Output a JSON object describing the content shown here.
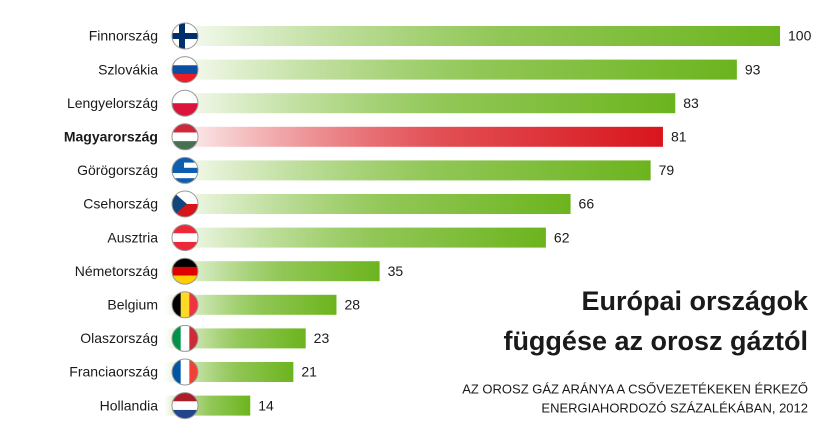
{
  "chart_data": {
    "type": "bar",
    "orientation": "horizontal",
    "title": [
      "Európai országok",
      "függése az orosz gáztól"
    ],
    "subtitle": [
      "AZ OROSZ GÁZ ARÁNYA A CSŐVEZETÉKEKEN ÉRKEZŐ",
      "ENERGIAHORDOZÓ SZÁZALÉKÁBAN, 2012"
    ],
    "categories": [
      "Finnország",
      "Szlovákia",
      "Lengyelország",
      "Magyarország",
      "Görögország",
      "Csehország",
      "Ausztria",
      "Németország",
      "Belgium",
      "Olaszország",
      "Franciaország",
      "Hollandia"
    ],
    "values": [
      100,
      93,
      83,
      81,
      79,
      66,
      62,
      35,
      28,
      23,
      21,
      14
    ],
    "color": "#6cb41e",
    "highlight": 3,
    "highlight_color": "#d8151c"
  }
}
